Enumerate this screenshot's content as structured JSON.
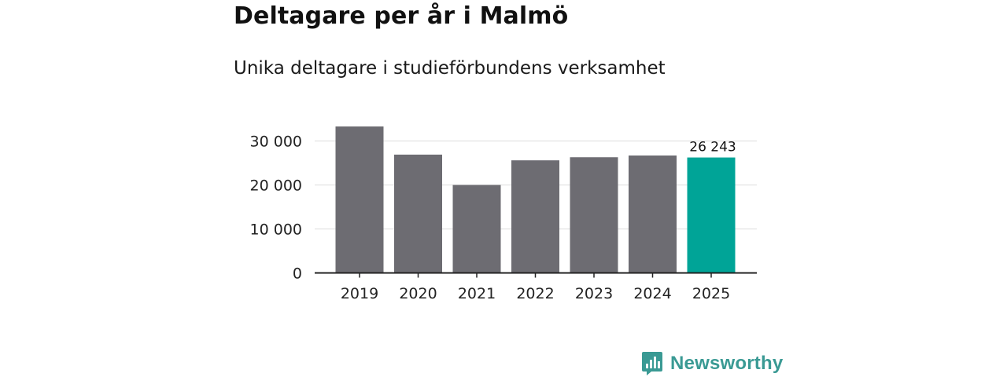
{
  "chart_data": {
    "type": "bar",
    "title": "Deltagare per år i Malmö",
    "subtitle": "Unika deltagare i studieförbundens verksamhet",
    "categories": [
      "2019",
      "2020",
      "2021",
      "2022",
      "2023",
      "2024",
      "2025"
    ],
    "values": [
      33300,
      26900,
      20000,
      25600,
      26300,
      26700,
      26243
    ],
    "highlight_index": 6,
    "highlight_label": "26 243",
    "ylim": [
      0,
      34000
    ],
    "yticks": [
      0,
      10000,
      20000,
      30000
    ],
    "ytick_labels": [
      "0",
      "10 000",
      "20 000",
      "30 000"
    ],
    "xlabel": "",
    "ylabel": "",
    "grid": true,
    "colors": {
      "bar": "#6d6c72",
      "highlight": "#00a497",
      "grid": "#dddddd",
      "axis": "#222222",
      "text": "#222222"
    }
  },
  "brand": {
    "name": "Newsworthy",
    "icon": "newsworthy-logo-icon",
    "color": "#3a9a94"
  }
}
